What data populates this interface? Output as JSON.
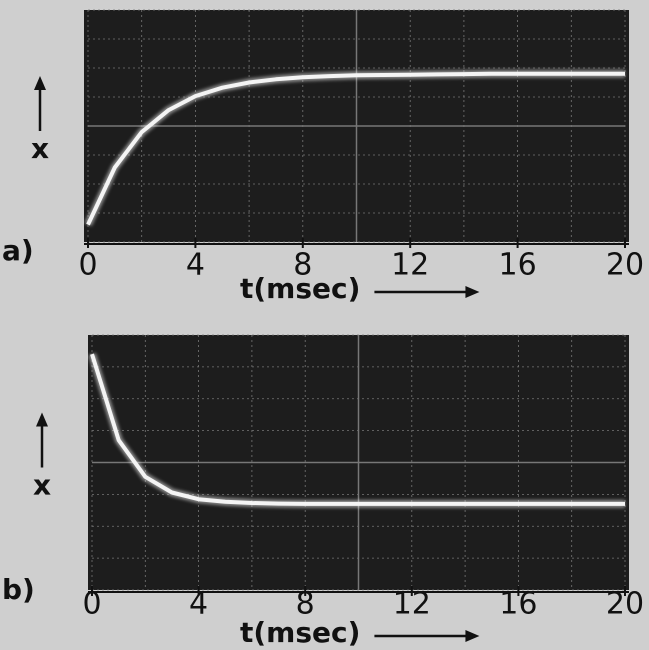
{
  "chart_data": [
    {
      "type": "line",
      "label": "a)",
      "xlabel": "t(msec)",
      "ylabel": "x",
      "x": [
        0,
        1,
        2,
        3,
        4,
        5,
        6,
        7,
        8,
        9,
        10,
        11,
        12,
        13,
        14,
        15,
        16,
        17,
        18,
        19,
        20
      ],
      "values": [
        0.6,
        2.57,
        3.79,
        4.55,
        5.03,
        5.32,
        5.5,
        5.61,
        5.68,
        5.72,
        5.75,
        5.76,
        5.77,
        5.78,
        5.79,
        5.8,
        5.8,
        5.8,
        5.8,
        5.8,
        5.8
      ],
      "xlim": [
        0,
        20
      ],
      "xticks": [
        0,
        4,
        8,
        12,
        16,
        20
      ],
      "ylim": [
        0,
        8
      ],
      "color": "#f4f4f4"
    },
    {
      "type": "line",
      "label": "b)",
      "xlabel": "t(msec)",
      "ylabel": "x",
      "x": [
        0,
        1,
        2,
        3,
        4,
        5,
        6,
        7,
        8,
        9,
        10,
        11,
        12,
        13,
        14,
        15,
        16,
        17,
        18,
        19,
        20
      ],
      "values": [
        7.4,
        4.7,
        3.55,
        3.06,
        2.85,
        2.77,
        2.73,
        2.71,
        2.7,
        2.7,
        2.7,
        2.7,
        2.7,
        2.7,
        2.7,
        2.7,
        2.7,
        2.7,
        2.7,
        2.7,
        2.7
      ],
      "xlim": [
        0,
        20
      ],
      "xticks": [
        0,
        4,
        8,
        12,
        16,
        20
      ],
      "ylim": [
        0,
        8
      ],
      "color": "#f4f4f4"
    }
  ]
}
